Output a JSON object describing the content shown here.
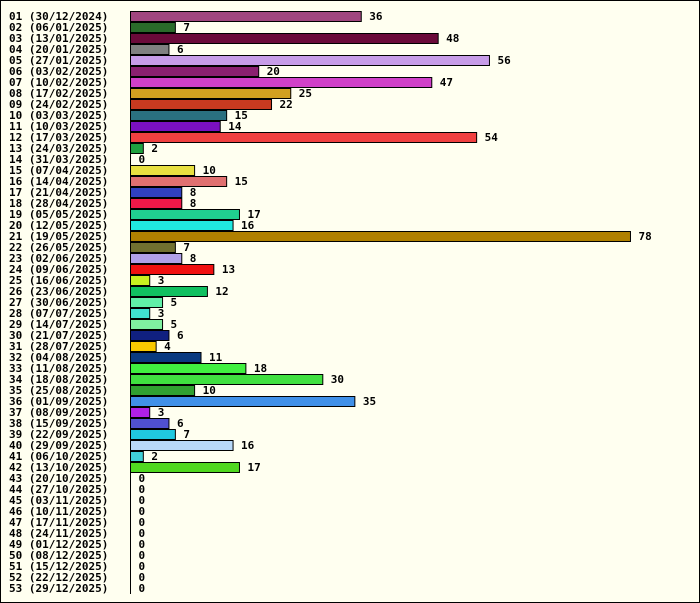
{
  "chart_data": {
    "type": "bar",
    "orientation": "horizontal",
    "title": "",
    "xlabel": "",
    "ylabel": "",
    "xlim": [
      0,
      78
    ],
    "grid": false,
    "legend": "none",
    "categories": [
      "01 (30/12/2024)",
      "02 (06/01/2025)",
      "03 (13/01/2025)",
      "04 (20/01/2025)",
      "05 (27/01/2025)",
      "06 (03/02/2025)",
      "07 (10/02/2025)",
      "08 (17/02/2025)",
      "09 (24/02/2025)",
      "10 (03/03/2025)",
      "11 (10/03/2025)",
      "12 (17/03/2025)",
      "13 (24/03/2025)",
      "14 (31/03/2025)",
      "15 (07/04/2025)",
      "16 (14/04/2025)",
      "17 (21/04/2025)",
      "18 (28/04/2025)",
      "19 (05/05/2025)",
      "20 (12/05/2025)",
      "21 (19/05/2025)",
      "22 (26/05/2025)",
      "23 (02/06/2025)",
      "24 (09/06/2025)",
      "25 (16/06/2025)",
      "26 (23/06/2025)",
      "27 (30/06/2025)",
      "28 (07/07/2025)",
      "29 (14/07/2025)",
      "30 (21/07/2025)",
      "31 (28/07/2025)",
      "32 (04/08/2025)",
      "33 (11/08/2025)",
      "34 (18/08/2025)",
      "35 (25/08/2025)",
      "36 (01/09/2025)",
      "37 (08/09/2025)",
      "38 (15/09/2025)",
      "39 (22/09/2025)",
      "40 (29/09/2025)",
      "41 (06/10/2025)",
      "42 (13/10/2025)",
      "43 (20/10/2025)",
      "44 (27/10/2025)",
      "45 (03/11/2025)",
      "46 (10/11/2025)",
      "47 (17/11/2025)",
      "48 (24/11/2025)",
      "49 (01/12/2025)",
      "50 (08/12/2025)",
      "51 (15/12/2025)",
      "52 (22/12/2025)",
      "53 (29/12/2025)"
    ],
    "values": [
      36,
      7,
      48,
      6,
      56,
      20,
      47,
      25,
      22,
      15,
      14,
      54,
      2,
      0,
      10,
      15,
      8,
      8,
      17,
      16,
      78,
      7,
      8,
      13,
      3,
      12,
      5,
      3,
      5,
      6,
      4,
      11,
      18,
      30,
      10,
      35,
      3,
      6,
      7,
      16,
      2,
      17,
      0,
      0,
      0,
      0,
      0,
      0,
      0,
      0,
      0,
      0,
      0
    ],
    "colors": [
      "#a0467f",
      "#2a6b2a",
      "#6b0a3a",
      "#808080",
      "#c79ce8",
      "#8a2070",
      "#d040c8",
      "#d2a020",
      "#c83a20",
      "#2a7080",
      "#7a10c0",
      "#f04040",
      "#20a040",
      "#ffffff",
      "#e8e040",
      "#e07070",
      "#3040c0",
      "#f01848",
      "#20d090",
      "#20e8e0",
      "#b08000",
      "#707030",
      "#b0a0e8",
      "#f01010",
      "#c8f020",
      "#10c060",
      "#60f0a8",
      "#40e0d0",
      "#80f0a0",
      "#102080",
      "#f8c800",
      "#0a3a80",
      "#40f040",
      "#40e040",
      "#30a030",
      "#4090e8",
      "#b020e8",
      "#5050d0",
      "#20c8e0",
      "#b8d8f8",
      "#40d0d8",
      "#50d820",
      "#ffffff",
      "#ffffff",
      "#ffffff",
      "#ffffff",
      "#ffffff",
      "#ffffff",
      "#ffffff",
      "#ffffff",
      "#ffffff",
      "#ffffff",
      "#ffffff"
    ]
  }
}
